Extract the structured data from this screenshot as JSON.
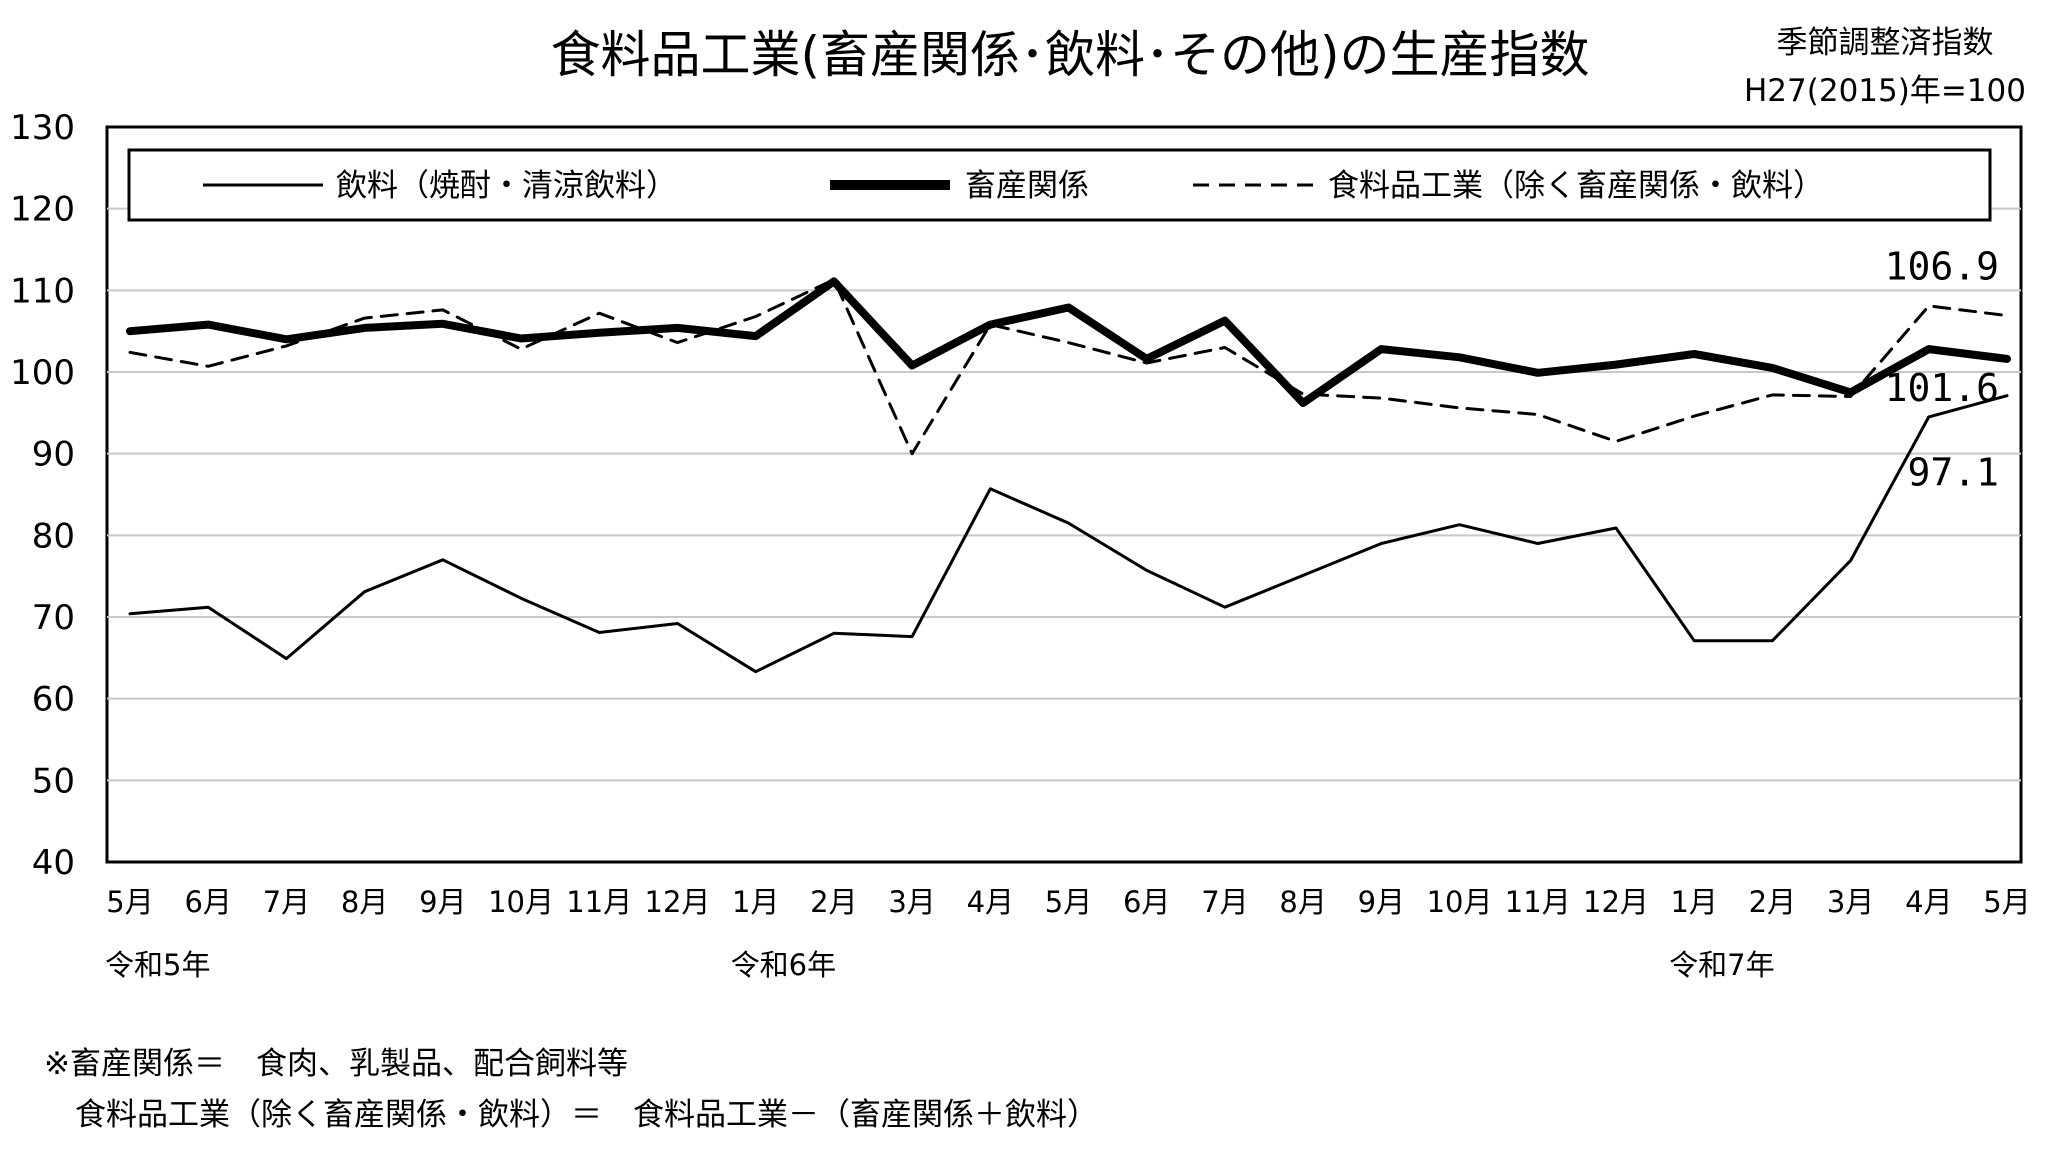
{
  "chart_data": {
    "type": "line",
    "title": "食料品工業(畜産関係･飲料･その他)の生産指数",
    "note_lines": [
      "季節調整済指数",
      "H27(2015)年=100"
    ],
    "ylim": [
      40,
      130
    ],
    "yticks": [
      40,
      50,
      60,
      70,
      80,
      90,
      100,
      110,
      120,
      130
    ],
    "grid": true,
    "legend_position": "top",
    "categories": [
      "5月",
      "6月",
      "7月",
      "8月",
      "9月",
      "10月",
      "11月",
      "12月",
      "1月",
      "2月",
      "3月",
      "4月",
      "5月",
      "6月",
      "7月",
      "8月",
      "9月",
      "10月",
      "11月",
      "12月",
      "1月",
      "2月",
      "3月",
      "4月",
      "5月"
    ],
    "year_labels": [
      {
        "index": 0,
        "label": "令和5年"
      },
      {
        "index": 8,
        "label": "令和6年"
      },
      {
        "index": 20,
        "label": "令和7年"
      }
    ],
    "series": [
      {
        "name": "飲料（焼酎・清涼飲料）",
        "style": "thin",
        "values": [
          70.4,
          71.2,
          64.9,
          73.1,
          77.0,
          72.3,
          68.1,
          69.2,
          63.3,
          68.0,
          67.6,
          85.7,
          81.5,
          75.7,
          71.2,
          75.1,
          79.0,
          81.3,
          79.0,
          80.9,
          67.1,
          67.1,
          76.9,
          94.5,
          97.1
        ],
        "end_label": "97.1"
      },
      {
        "name": "畜産関係",
        "style": "thick",
        "values": [
          105.0,
          105.8,
          104.0,
          105.4,
          105.9,
          104.1,
          104.8,
          105.4,
          104.4,
          111.1,
          100.8,
          105.8,
          107.9,
          101.6,
          106.3,
          96.2,
          102.8,
          101.8,
          99.9,
          100.9,
          102.2,
          100.5,
          97.5,
          102.8,
          101.6
        ],
        "end_label": "101.6"
      },
      {
        "name": "食料品工業（除く畜産関係・飲料）",
        "style": "dashed",
        "values": [
          102.4,
          100.7,
          103.2,
          106.6,
          107.6,
          102.8,
          107.2,
          103.6,
          106.8,
          111.3,
          90.0,
          105.8,
          103.6,
          101.1,
          103.0,
          97.3,
          96.8,
          95.6,
          94.8,
          91.5,
          94.6,
          97.2,
          97.0,
          108.1,
          106.9
        ],
        "end_label": "106.9"
      }
    ]
  },
  "footnotes": [
    "※畜産関係＝　食肉、乳製品、配合飼料等",
    "　食料品工業（除く畜産関係・飲料）＝　食料品工業－（畜産関係＋飲料）"
  ],
  "colors": {
    "line": "#000000",
    "grid": "#c8c8c8",
    "background": "#ffffff"
  }
}
